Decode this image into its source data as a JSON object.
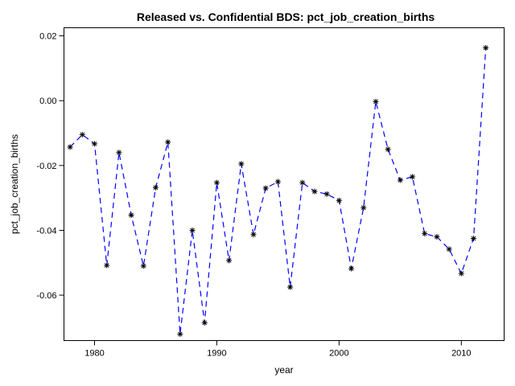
{
  "chart_data": {
    "type": "line",
    "title": "Released vs. Confidential BDS: pct_job_creation_births",
    "xlabel": "year",
    "ylabel": "pct_job_creation_births",
    "xlim": [
      1977.5,
      2013.5
    ],
    "ylim": [
      -0.074,
      0.0225
    ],
    "xticks": [
      1980,
      1990,
      2000,
      2010
    ],
    "yticks": [
      0.02,
      0.0,
      -0.02,
      -0.04,
      -0.06
    ],
    "ytick_labels": [
      "0.02",
      "0.00",
      "-0.02",
      "-0.04",
      "-0.06"
    ],
    "grid": false,
    "series": [
      {
        "line_style": "dashed",
        "line_color": "#0000ff",
        "marker": "asterisk",
        "marker_color": "#000000",
        "x": [
          1978,
          1979,
          1980,
          1981,
          1982,
          1983,
          1984,
          1985,
          1986,
          1987,
          1988,
          1989,
          1990,
          1991,
          1992,
          1993,
          1994,
          1995,
          1996,
          1997,
          1998,
          1999,
          2000,
          2001,
          2002,
          2003,
          2004,
          2005,
          2006,
          2007,
          2008,
          2009,
          2010,
          2011,
          2012
        ],
        "y": [
          -0.0143,
          -0.0105,
          -0.0133,
          -0.0508,
          -0.016,
          -0.0353,
          -0.051,
          -0.0268,
          -0.0128,
          -0.072,
          -0.04,
          -0.0685,
          -0.0253,
          -0.0493,
          -0.0195,
          -0.0413,
          -0.027,
          -0.025,
          -0.0575,
          -0.0253,
          -0.028,
          -0.0288,
          -0.0308,
          -0.0518,
          -0.033,
          -0.0003,
          -0.015,
          -0.0245,
          -0.0235,
          -0.041,
          -0.042,
          -0.0458,
          -0.0533,
          -0.0425,
          0.0163
        ]
      }
    ]
  }
}
